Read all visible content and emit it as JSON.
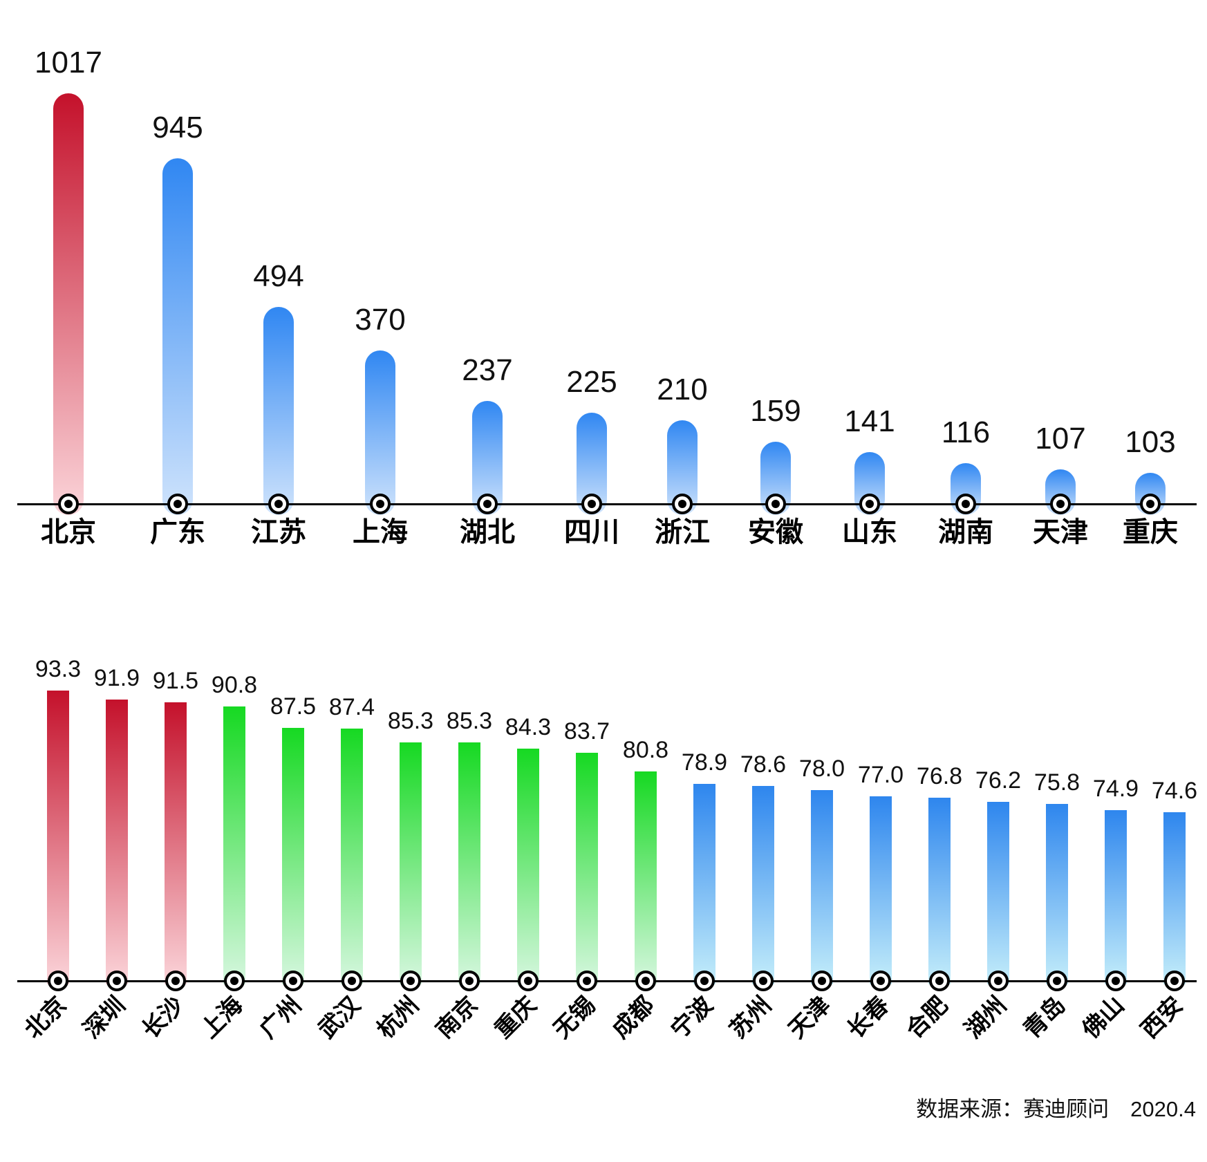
{
  "source": {
    "text": "数据来源：赛迪顾问　2020.4"
  },
  "palette": {
    "crimson": "#c4112b",
    "crimson_fade": "#fbd5da",
    "blue_provinces": "#3087f2",
    "blue_provinces_fade": "#d0e4fc",
    "green": "#16d922",
    "green_fade": "#d7f7e0",
    "blue_cities": "#2e86ee",
    "blue_cities_fade": "#c5eefa"
  },
  "chart_data": [
    {
      "type": "bar",
      "title": "",
      "xlabel": "",
      "ylabel": "",
      "grid": false,
      "legend": null,
      "categories": [
        "北京",
        "广东",
        "江苏",
        "上海",
        "湖北",
        "四川",
        "浙江",
        "安徽",
        "山东",
        "湖南",
        "天津",
        "重庆"
      ],
      "values": [
        1017,
        945,
        494,
        370,
        237,
        225,
        210,
        159,
        141,
        116,
        107,
        103
      ],
      "bar_colors": [
        "red",
        "blue",
        "blue",
        "blue",
        "blue",
        "blue",
        "blue",
        "blue",
        "blue",
        "blue",
        "blue",
        "blue"
      ],
      "value_label_format": "integer"
    },
    {
      "type": "bar",
      "title": "",
      "xlabel": "",
      "ylabel": "",
      "grid": false,
      "legend": null,
      "categories": [
        "北京",
        "深圳",
        "长沙",
        "上海",
        "广州",
        "武汉",
        "杭州",
        "南京",
        "重庆",
        "无锡",
        "成都",
        "宁波",
        "苏州",
        "天津",
        "长春",
        "合肥",
        "湖州",
        "青岛",
        "佛山",
        "西安"
      ],
      "values": [
        93.3,
        91.9,
        91.5,
        90.8,
        87.5,
        87.4,
        85.3,
        85.3,
        84.3,
        83.7,
        80.8,
        78.9,
        78.6,
        78.0,
        77.0,
        76.8,
        76.2,
        75.8,
        74.9,
        74.6
      ],
      "bar_colors": [
        "red",
        "red",
        "red",
        "green",
        "green",
        "green",
        "green",
        "green",
        "green",
        "green",
        "green",
        "blue",
        "blue",
        "blue",
        "blue",
        "blue",
        "blue",
        "blue",
        "blue",
        "blue"
      ],
      "value_label_format": "one_decimal"
    }
  ]
}
